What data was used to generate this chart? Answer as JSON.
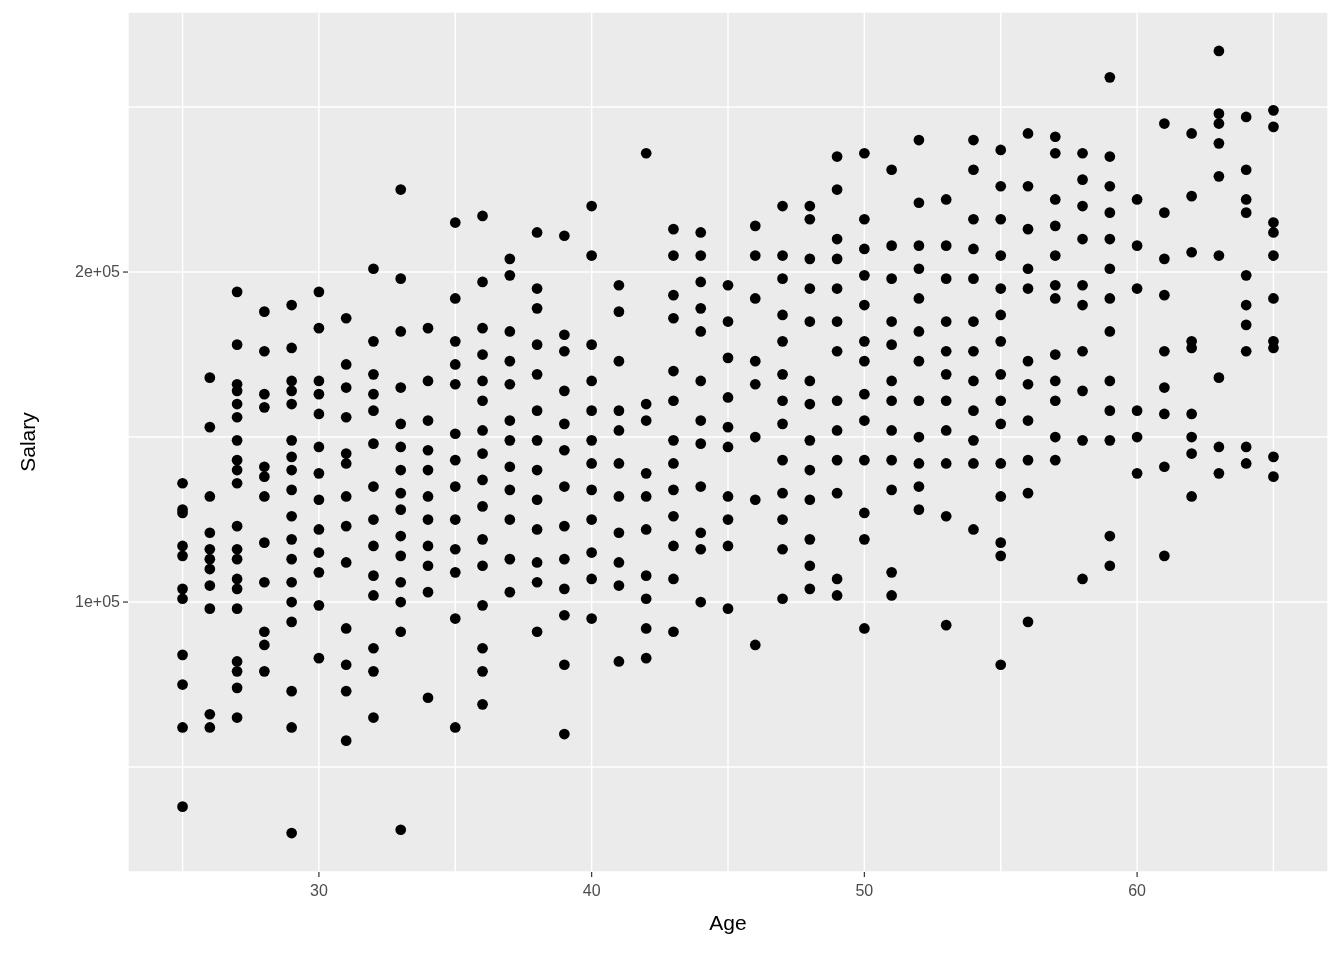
{
  "chart_data": {
    "type": "scatter",
    "xlabel": "Age",
    "ylabel": "Salary",
    "xlim": [
      23,
      67
    ],
    "ylim": [
      18200,
      278800
    ],
    "xticks": [
      {
        "value": 25,
        "label": null
      },
      30,
      {
        "value": 35,
        "label": null
      },
      40,
      {
        "value": 45,
        "label": null
      },
      50,
      {
        "value": 55,
        "label": null
      },
      60,
      {
        "value": 65,
        "label": null
      }
    ],
    "yticks": [
      {
        "value": 50000,
        "label": null
      },
      {
        "value": 100000,
        "label": "1e+05"
      },
      {
        "value": 150000,
        "label": null
      },
      {
        "value": 200000,
        "label": "2e+05"
      },
      {
        "value": 250000,
        "label": null
      }
    ],
    "grid": true,
    "marker": "circle",
    "series": [
      {
        "color": "#000000",
        "x": [
          25,
          25,
          25,
          25,
          25,
          25,
          25,
          25,
          25,
          25,
          25,
          26,
          26,
          26,
          26,
          26,
          26,
          26,
          26,
          26,
          26,
          26,
          27,
          27,
          27,
          27,
          27,
          27,
          27,
          27,
          27,
          27,
          27,
          27,
          27,
          27,
          27,
          27,
          27,
          27,
          27,
          27,
          28,
          28,
          28,
          28,
          28,
          28,
          28,
          28,
          28,
          28,
          28,
          28,
          29,
          29,
          29,
          29,
          29,
          29,
          29,
          29,
          29,
          29,
          29,
          29,
          29,
          29,
          29,
          29,
          29,
          29,
          30,
          30,
          30,
          30,
          30,
          30,
          30,
          30,
          30,
          30,
          30,
          30,
          30,
          31,
          31,
          31,
          31,
          31,
          31,
          31,
          31,
          31,
          31,
          31,
          31,
          31,
          32,
          32,
          32,
          32,
          32,
          32,
          32,
          32,
          32,
          32,
          32,
          32,
          32,
          32,
          33,
          33,
          33,
          33,
          33,
          33,
          33,
          33,
          33,
          33,
          33,
          33,
          33,
          33,
          33,
          34,
          34,
          34,
          34,
          34,
          34,
          34,
          34,
          34,
          34,
          34,
          35,
          35,
          35,
          35,
          35,
          35,
          35,
          35,
          35,
          35,
          35,
          35,
          35,
          36,
          36,
          36,
          36,
          36,
          36,
          36,
          36,
          36,
          36,
          36,
          36,
          36,
          36,
          36,
          36,
          37,
          37,
          37,
          37,
          37,
          37,
          37,
          37,
          37,
          37,
          37,
          37,
          38,
          38,
          38,
          38,
          38,
          38,
          38,
          38,
          38,
          38,
          38,
          38,
          38,
          39,
          39,
          39,
          39,
          39,
          39,
          39,
          39,
          39,
          39,
          39,
          39,
          39,
          40,
          40,
          40,
          40,
          40,
          40,
          40,
          40,
          40,
          40,
          40,
          40,
          41,
          41,
          41,
          41,
          41,
          41,
          41,
          41,
          41,
          41,
          41,
          42,
          42,
          42,
          42,
          42,
          42,
          42,
          42,
          42,
          42,
          43,
          43,
          43,
          43,
          43,
          43,
          43,
          43,
          43,
          43,
          43,
          43,
          43,
          44,
          44,
          44,
          44,
          44,
          44,
          44,
          44,
          44,
          44,
          44,
          44,
          45,
          45,
          45,
          45,
          45,
          45,
          45,
          45,
          45,
          45,
          46,
          46,
          46,
          46,
          46,
          46,
          46,
          46,
          47,
          47,
          47,
          47,
          47,
          47,
          47,
          47,
          47,
          47,
          47,
          47,
          47,
          48,
          48,
          48,
          48,
          48,
          48,
          48,
          48,
          48,
          48,
          48,
          48,
          48,
          49,
          49,
          49,
          49,
          49,
          49,
          49,
          49,
          49,
          49,
          49,
          49,
          49,
          50,
          50,
          50,
          50,
          50,
          50,
          50,
          50,
          50,
          50,
          50,
          50,
          50,
          51,
          51,
          51,
          51,
          51,
          51,
          51,
          51,
          51,
          51,
          51,
          51,
          52,
          52,
          52,
          52,
          52,
          52,
          52,
          52,
          52,
          52,
          52,
          52,
          53,
          53,
          53,
          53,
          53,
          53,
          53,
          53,
          53,
          53,
          53,
          54,
          54,
          54,
          54,
          54,
          54,
          54,
          54,
          54,
          54,
          54,
          54,
          55,
          55,
          55,
          55,
          55,
          55,
          55,
          55,
          55,
          55,
          55,
          55,
          55,
          55,
          55,
          56,
          56,
          56,
          56,
          56,
          56,
          56,
          56,
          56,
          56,
          56,
          57,
          57,
          57,
          57,
          57,
          57,
          57,
          57,
          57,
          57,
          57,
          57,
          58,
          58,
          58,
          58,
          58,
          58,
          58,
          58,
          58,
          58,
          59,
          59,
          59,
          59,
          59,
          59,
          59,
          59,
          59,
          59,
          59,
          59,
          59,
          60,
          60,
          60,
          60,
          60,
          60,
          61,
          61,
          61,
          61,
          61,
          61,
          61,
          61,
          61,
          62,
          62,
          62,
          62,
          62,
          62,
          62,
          62,
          62,
          63,
          63,
          63,
          63,
          63,
          63,
          63,
          63,
          63,
          64,
          64,
          64,
          64,
          64,
          64,
          64,
          64,
          64,
          64,
          65,
          65,
          65,
          65,
          65,
          65,
          65,
          65,
          65,
          65
        ],
        "values": [
          136000,
          128000,
          127000,
          117000,
          114000,
          104000,
          101000,
          84000,
          75000,
          62000,
          38000,
          168000,
          153000,
          132000,
          121000,
          116000,
          113000,
          110000,
          105000,
          98000,
          66000,
          62000,
          194000,
          178000,
          166000,
          164000,
          160000,
          156000,
          149000,
          143000,
          140000,
          136000,
          123000,
          116000,
          113000,
          107000,
          104000,
          98000,
          82000,
          79000,
          74000,
          65000,
          188000,
          176000,
          163000,
          159000,
          141000,
          138000,
          132000,
          118000,
          106000,
          91000,
          87000,
          79000,
          190000,
          177000,
          167000,
          164000,
          160000,
          149000,
          144000,
          140000,
          134000,
          126000,
          119000,
          113000,
          106000,
          100000,
          94000,
          73000,
          62000,
          30000,
          194000,
          183000,
          167000,
          163000,
          157000,
          147000,
          139000,
          131000,
          122000,
          115000,
          109000,
          99000,
          83000,
          186000,
          172000,
          165000,
          156000,
          145000,
          142000,
          132000,
          123000,
          112000,
          92000,
          81000,
          73000,
          58000,
          201000,
          179000,
          169000,
          163000,
          158000,
          148000,
          135000,
          125000,
          117000,
          108000,
          102000,
          86000,
          79000,
          65000,
          225000,
          198000,
          182000,
          165000,
          154000,
          147000,
          140000,
          133000,
          128000,
          120000,
          114000,
          106000,
          100000,
          91000,
          31000,
          183000,
          167000,
          155000,
          146000,
          140000,
          132000,
          125000,
          117000,
          111000,
          103000,
          71000,
          215000,
          192000,
          179000,
          172000,
          166000,
          151000,
          143000,
          135000,
          125000,
          116000,
          109000,
          95000,
          62000,
          217000,
          197000,
          183000,
          175000,
          167000,
          161000,
          152000,
          145000,
          137000,
          129000,
          119000,
          111000,
          99000,
          86000,
          79000,
          69000,
          204000,
          199000,
          182000,
          173000,
          166000,
          155000,
          149000,
          141000,
          134000,
          125000,
          113000,
          103000,
          212000,
          195000,
          189000,
          178000,
          169000,
          158000,
          149000,
          140000,
          131000,
          122000,
          112000,
          106000,
          91000,
          211000,
          181000,
          176000,
          164000,
          154000,
          146000,
          135000,
          123000,
          113000,
          104000,
          96000,
          81000,
          60000,
          220000,
          205000,
          178000,
          167000,
          158000,
          149000,
          142000,
          134000,
          125000,
          115000,
          107000,
          95000,
          196000,
          188000,
          173000,
          158000,
          152000,
          142000,
          132000,
          121000,
          112000,
          105000,
          82000,
          236000,
          160000,
          155000,
          139000,
          132000,
          122000,
          108000,
          101000,
          92000,
          83000,
          213000,
          205000,
          193000,
          186000,
          170000,
          161000,
          149000,
          142000,
          134000,
          126000,
          117000,
          107000,
          91000,
          212000,
          205000,
          197000,
          189000,
          182000,
          167000,
          155000,
          148000,
          135000,
          121000,
          116000,
          100000,
          196000,
          185000,
          174000,
          162000,
          153000,
          147000,
          132000,
          125000,
          117000,
          98000,
          214000,
          205000,
          192000,
          173000,
          166000,
          150000,
          131000,
          87000,
          220000,
          205000,
          198000,
          187000,
          179000,
          169000,
          161000,
          154000,
          143000,
          133000,
          125000,
          116000,
          101000,
          220000,
          216000,
          204000,
          195000,
          185000,
          167000,
          160000,
          149000,
          140000,
          131000,
          119000,
          111000,
          104000,
          235000,
          225000,
          210000,
          204000,
          195000,
          185000,
          176000,
          161000,
          152000,
          143000,
          133000,
          107000,
          102000,
          236000,
          216000,
          207000,
          199000,
          190000,
          179000,
          173000,
          163000,
          155000,
          143000,
          127000,
          119000,
          92000,
          231000,
          208000,
          198000,
          185000,
          178000,
          167000,
          161000,
          152000,
          143000,
          134000,
          109000,
          102000,
          240000,
          221000,
          208000,
          201000,
          192000,
          182000,
          173000,
          161000,
          150000,
          142000,
          135000,
          128000,
          222000,
          208000,
          198000,
          185000,
          176000,
          169000,
          161000,
          152000,
          142000,
          126000,
          93000,
          240000,
          231000,
          216000,
          207000,
          198000,
          185000,
          176000,
          167000,
          158000,
          149000,
          142000,
          122000,
          237000,
          226000,
          216000,
          205000,
          195000,
          187000,
          179000,
          169000,
          161000,
          154000,
          142000,
          132000,
          118000,
          114000,
          81000,
          242000,
          226000,
          213000,
          201000,
          195000,
          173000,
          166000,
          155000,
          143000,
          133000,
          94000,
          241000,
          236000,
          222000,
          214000,
          205000,
          196000,
          192000,
          175000,
          167000,
          161000,
          150000,
          143000,
          236000,
          228000,
          220000,
          210000,
          196000,
          190000,
          176000,
          164000,
          149000,
          107000,
          259000,
          235000,
          226000,
          218000,
          210000,
          201000,
          192000,
          182000,
          167000,
          158000,
          149000,
          120000,
          111000,
          222000,
          208000,
          195000,
          158000,
          150000,
          139000,
          245000,
          218000,
          204000,
          193000,
          176000,
          165000,
          157000,
          141000,
          114000,
          242000,
          223000,
          206000,
          179000,
          177000,
          157000,
          150000,
          145000,
          132000,
          267000,
          248000,
          245000,
          239000,
          229000,
          205000,
          168000,
          147000,
          139000,
          247000,
          231000,
          222000,
          218000,
          199000,
          190000,
          184000,
          176000,
          147000,
          142000,
          249000,
          244000,
          215000,
          212000,
          205000,
          192000,
          179000,
          177000,
          144000,
          138000
        ]
      }
    ]
  }
}
